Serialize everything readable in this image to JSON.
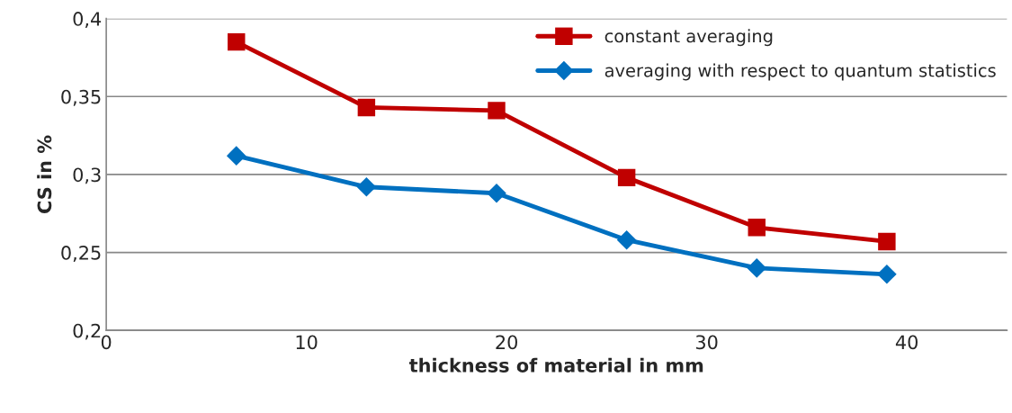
{
  "chart_data": {
    "type": "line",
    "xlabel": "thickness of material in mm",
    "ylabel": "CS in %",
    "x": [
      6.5,
      13,
      19.5,
      26,
      32.5,
      39
    ],
    "series": [
      {
        "name": "constant averaging",
        "color": "#c00000",
        "marker": "square",
        "values": [
          0.385,
          0.343,
          0.341,
          0.298,
          0.266,
          0.257
        ]
      },
      {
        "name": "averaging with respect to quantum statistics",
        "color": "#0070c0",
        "marker": "diamond",
        "values": [
          0.312,
          0.292,
          0.288,
          0.258,
          0.24,
          0.236
        ]
      }
    ],
    "xlim": [
      0,
      45
    ],
    "xticks": [
      0,
      10,
      20,
      30,
      40
    ],
    "ylim": [
      0.2,
      0.4
    ],
    "yticks": [
      {
        "value": 0.2,
        "label": "0,2"
      },
      {
        "value": 0.25,
        "label": "0,25"
      },
      {
        "value": 0.3,
        "label": "0,3"
      },
      {
        "value": 0.35,
        "label": "0,35"
      },
      {
        "value": 0.4,
        "label": "0,4"
      }
    ],
    "grid": "y",
    "legend": "top right",
    "line_style": "solid"
  }
}
